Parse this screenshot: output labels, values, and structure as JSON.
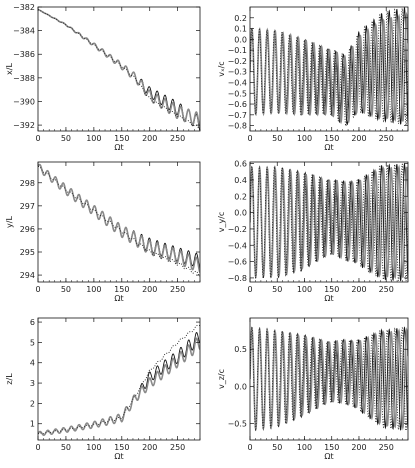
{
  "chart_data": [
    {
      "id": "x",
      "type": "line",
      "xlabel": "Ωt",
      "ylabel": "x/L",
      "xlim": [
        0,
        290
      ],
      "ylim": [
        -392.5,
        -382
      ],
      "xticks": [
        0,
        50,
        100,
        150,
        200,
        250
      ],
      "yticks": [
        -392,
        -390,
        -388,
        -386,
        -384,
        -382
      ],
      "ytick_labels": [
        "−392",
        "−390",
        "−388",
        "−386",
        "−384",
        "−382"
      ],
      "series": [
        {
          "style": "solid",
          "color": "#111111",
          "mean": {
            "x": [
              0,
              50,
              100,
              150,
              175,
              200,
              250,
              290
            ],
            "y": [
              -382.2,
              -383.5,
              -385.2,
              -387.0,
              -388.0,
              -389.2,
              -390.6,
              -391.9
            ]
          },
          "osc": {
            "amp": [
              0,
              0.05,
              0.15,
              0.25,
              0.4,
              0.55,
              0.6
            ],
            "period": 14
          }
        },
        {
          "style": "gray",
          "color": "#8a8a8a",
          "mean": {
            "x": [
              0,
              50,
              100,
              150,
              175,
              200,
              250,
              290
            ],
            "y": [
              -382.2,
              -383.5,
              -385.2,
              -387.0,
              -388.0,
              -389.5,
              -390.9,
              -391.6
            ]
          },
          "osc": {
            "amp": [
              0,
              0.05,
              0.15,
              0.25,
              0.4,
              0.55,
              0.6
            ],
            "period": 14
          }
        },
        {
          "style": "dotted",
          "color": "#222222",
          "mean": {
            "x": [
              0,
              50,
              100,
              150,
              175,
              200,
              250,
              290
            ],
            "y": [
              -382.2,
              -383.5,
              -385.2,
              -387.0,
              -388.1,
              -389.8,
              -391.2,
              -392.3
            ]
          },
          "osc": {
            "amp": [
              0,
              0.02,
              0.05,
              0.08,
              0.1,
              0.1,
              0.1
            ],
            "period": 14
          }
        }
      ]
    },
    {
      "id": "vx",
      "type": "line",
      "xlabel": "Ωt",
      "ylabel": "vₓ/c",
      "xlim": [
        0,
        290
      ],
      "ylim": [
        -0.85,
        0.3
      ],
      "xticks": [
        0,
        50,
        100,
        150,
        200,
        250
      ],
      "yticks": [
        -0.8,
        -0.7,
        -0.6,
        -0.5,
        -0.4,
        -0.3,
        -0.2,
        -0.1,
        0.0,
        0.1,
        0.2
      ],
      "ytick_labels": [
        "−0.8",
        "−0.7",
        "−0.6",
        "−0.5",
        "−0.4",
        "−0.3",
        "−0.2",
        "−0.1",
        "0.0",
        "0.1",
        "0.2"
      ],
      "series": [
        {
          "style": "solid",
          "color": "#111111",
          "mean": {
            "x": [
              0,
              50,
              100,
              150,
              175,
              200,
              250,
              290
            ],
            "y": [
              -0.3,
              -0.3,
              -0.35,
              -0.4,
              -0.48,
              -0.3,
              -0.25,
              -0.25
            ]
          },
          "osc": {
            "amp": [
              0.4,
              0.38,
              0.35,
              0.3,
              0.35,
              0.5,
              0.55
            ],
            "period": 14
          }
        },
        {
          "style": "gray",
          "color": "#8a8a8a",
          "mean": {
            "x": [
              0,
              50,
              100,
              150,
              175,
              200,
              250,
              290
            ],
            "y": [
              -0.3,
              -0.3,
              -0.35,
              -0.4,
              -0.48,
              -0.32,
              -0.27,
              -0.27
            ]
          },
          "osc": {
            "amp": [
              0.4,
              0.38,
              0.35,
              0.3,
              0.33,
              0.45,
              0.5
            ],
            "period": 14.2
          }
        },
        {
          "style": "dotted",
          "color": "#222222",
          "mean": {
            "x": [
              0,
              50,
              100,
              150,
              175,
              200,
              250,
              290
            ],
            "y": [
              -0.3,
              -0.3,
              -0.35,
              -0.4,
              -0.48,
              -0.3,
              -0.25,
              -0.25
            ]
          },
          "osc": {
            "amp": [
              0.4,
              0.38,
              0.35,
              0.3,
              0.35,
              0.5,
              0.55
            ],
            "period": 13.8
          }
        }
      ]
    },
    {
      "id": "y",
      "type": "line",
      "xlabel": "Ωt",
      "ylabel": "y/L",
      "xlim": [
        0,
        290
      ],
      "ylim": [
        293.7,
        298.9
      ],
      "xticks": [
        0,
        50,
        100,
        150,
        200,
        250
      ],
      "yticks": [
        294,
        295,
        296,
        297,
        298
      ],
      "ytick_labels": [
        "294",
        "295",
        "296",
        "297",
        "298"
      ],
      "series": [
        {
          "style": "solid",
          "color": "#111111",
          "mean": {
            "x": [
              0,
              50,
              100,
              150,
              200,
              250,
              290
            ],
            "y": [
              298.7,
              297.7,
              296.8,
              295.9,
              295.3,
              294.9,
              294.6
            ]
          },
          "osc": {
            "amp": [
              0.15,
              0.2,
              0.22,
              0.25,
              0.3,
              0.3,
              0.3
            ],
            "period": 14
          }
        },
        {
          "style": "gray",
          "color": "#8a8a8a",
          "mean": {
            "x": [
              0,
              50,
              100,
              150,
              200,
              250,
              290
            ],
            "y": [
              298.7,
              297.7,
              296.8,
              295.9,
              295.2,
              294.8,
              294.4
            ]
          },
          "osc": {
            "amp": [
              0.15,
              0.2,
              0.22,
              0.25,
              0.3,
              0.3,
              0.3
            ],
            "period": 14
          }
        },
        {
          "style": "dotted",
          "color": "#222222",
          "mean": {
            "x": [
              0,
              50,
              100,
              150,
              200,
              250,
              290
            ],
            "y": [
              298.7,
              297.7,
              296.8,
              295.9,
              295.0,
              294.5,
              294.0
            ]
          },
          "osc": {
            "amp": [
              0.05,
              0.05,
              0.05,
              0.06,
              0.08,
              0.08,
              0.08
            ],
            "period": 14
          }
        }
      ]
    },
    {
      "id": "vy",
      "type": "line",
      "xlabel": "Ωt",
      "ylabel": "v_y/c",
      "xlim": [
        0,
        290
      ],
      "ylim": [
        -0.85,
        0.62
      ],
      "xticks": [
        0,
        50,
        100,
        150,
        200,
        250
      ],
      "yticks": [
        -0.8,
        -0.6,
        -0.4,
        -0.2,
        0.0,
        0.2,
        0.4,
        0.6
      ],
      "ytick_labels": [
        "−0.8",
        "−0.6",
        "−0.4",
        "−0.2",
        "0.0",
        "0.2",
        "0.4",
        "0.6"
      ],
      "series": [
        {
          "style": "solid",
          "color": "#111111",
          "mean": {
            "x": [
              0,
              50,
              100,
              150,
              175,
              200,
              250,
              290
            ],
            "y": [
              -0.12,
              -0.12,
              -0.1,
              -0.05,
              -0.1,
              -0.12,
              -0.12,
              -0.12
            ]
          },
          "osc": {
            "amp": [
              0.68,
              0.68,
              0.6,
              0.45,
              0.5,
              0.7,
              0.72
            ],
            "period": 14
          }
        },
        {
          "style": "gray",
          "color": "#8a8a8a",
          "mean": {
            "x": [
              0,
              50,
              100,
              150,
              175,
              200,
              250,
              290
            ],
            "y": [
              -0.12,
              -0.12,
              -0.1,
              -0.05,
              -0.1,
              -0.12,
              -0.12,
              -0.12
            ]
          },
          "osc": {
            "amp": [
              0.66,
              0.66,
              0.58,
              0.45,
              0.48,
              0.66,
              0.68
            ],
            "period": 14.2
          }
        },
        {
          "style": "dotted",
          "color": "#222222",
          "mean": {
            "x": [
              0,
              50,
              100,
              150,
              175,
              200,
              250,
              290
            ],
            "y": [
              -0.12,
              -0.12,
              -0.1,
              -0.05,
              -0.1,
              -0.12,
              -0.12,
              -0.12
            ]
          },
          "osc": {
            "amp": [
              0.68,
              0.68,
              0.6,
              0.45,
              0.5,
              0.7,
              0.72
            ],
            "period": 13.8
          }
        }
      ]
    },
    {
      "id": "z",
      "type": "line",
      "xlabel": "Ωt",
      "ylabel": "z/L",
      "xlim": [
        0,
        290
      ],
      "ylim": [
        0.2,
        6.2
      ],
      "xticks": [
        0,
        50,
        100,
        150,
        200,
        250
      ],
      "yticks": [
        1,
        2,
        3,
        4,
        5,
        6
      ],
      "ytick_labels": [
        "1",
        "2",
        "3",
        "4",
        "5",
        "6"
      ],
      "series": [
        {
          "style": "solid",
          "color": "#111111",
          "mean": {
            "x": [
              0,
              50,
              100,
              150,
              175,
              200,
              250,
              290
            ],
            "y": [
              0.5,
              0.7,
              0.95,
              1.3,
              2.3,
              3.3,
              4.3,
              5.3
            ]
          },
          "osc": {
            "amp": [
              0.1,
              0.12,
              0.15,
              0.2,
              0.25,
              0.3,
              0.35
            ],
            "period": 14
          }
        },
        {
          "style": "gray",
          "color": "#8a8a8a",
          "mean": {
            "x": [
              0,
              50,
              100,
              150,
              175,
              200,
              250,
              290
            ],
            "y": [
              0.5,
              0.7,
              0.95,
              1.3,
              2.3,
              3.0,
              4.1,
              5.0
            ]
          },
          "osc": {
            "amp": [
              0.1,
              0.12,
              0.15,
              0.2,
              0.25,
              0.3,
              0.35
            ],
            "period": 14
          }
        },
        {
          "style": "dotted",
          "color": "#222222",
          "mean": {
            "x": [
              0,
              50,
              100,
              150,
              175,
              200,
              250,
              290
            ],
            "y": [
              0.5,
              0.7,
              0.95,
              1.3,
              2.4,
              3.6,
              5.0,
              5.9
            ]
          },
          "osc": {
            "amp": [
              0.03,
              0.03,
              0.04,
              0.05,
              0.06,
              0.06,
              0.06
            ],
            "period": 14
          }
        }
      ]
    },
    {
      "id": "vz",
      "type": "line",
      "xlabel": "Ωt",
      "ylabel": "v_z/c",
      "xlim": [
        0,
        290
      ],
      "ylim": [
        -0.72,
        0.92
      ],
      "xticks": [
        0,
        50,
        100,
        150,
        200,
        250
      ],
      "yticks": [
        -0.5,
        0.0,
        0.5
      ],
      "ytick_labels": [
        "−0.5",
        "0.0",
        "0.5"
      ],
      "series": [
        {
          "style": "solid",
          "color": "#111111",
          "mean": {
            "x": [
              0,
              50,
              100,
              150,
              175,
              200,
              250,
              290
            ],
            "y": [
              0.1,
              0.1,
              0.15,
              0.2,
              0.2,
              0.15,
              0.1,
              0.1
            ]
          },
          "osc": {
            "amp": [
              0.7,
              0.65,
              0.55,
              0.4,
              0.45,
              0.65,
              0.7
            ],
            "period": 14
          }
        },
        {
          "style": "gray",
          "color": "#8a8a8a",
          "mean": {
            "x": [
              0,
              50,
              100,
              150,
              175,
              200,
              250,
              290
            ],
            "y": [
              0.1,
              0.1,
              0.15,
              0.2,
              0.2,
              0.15,
              0.1,
              0.1
            ]
          },
          "osc": {
            "amp": [
              0.68,
              0.63,
              0.53,
              0.4,
              0.43,
              0.62,
              0.66
            ],
            "period": 14.2
          }
        },
        {
          "style": "dotted",
          "color": "#222222",
          "mean": {
            "x": [
              0,
              50,
              100,
              150,
              175,
              200,
              250,
              290
            ],
            "y": [
              0.1,
              0.1,
              0.15,
              0.2,
              0.2,
              0.15,
              0.1,
              0.1
            ]
          },
          "osc": {
            "amp": [
              0.7,
              0.65,
              0.55,
              0.4,
              0.45,
              0.65,
              0.7
            ],
            "period": 13.8
          }
        }
      ]
    }
  ]
}
